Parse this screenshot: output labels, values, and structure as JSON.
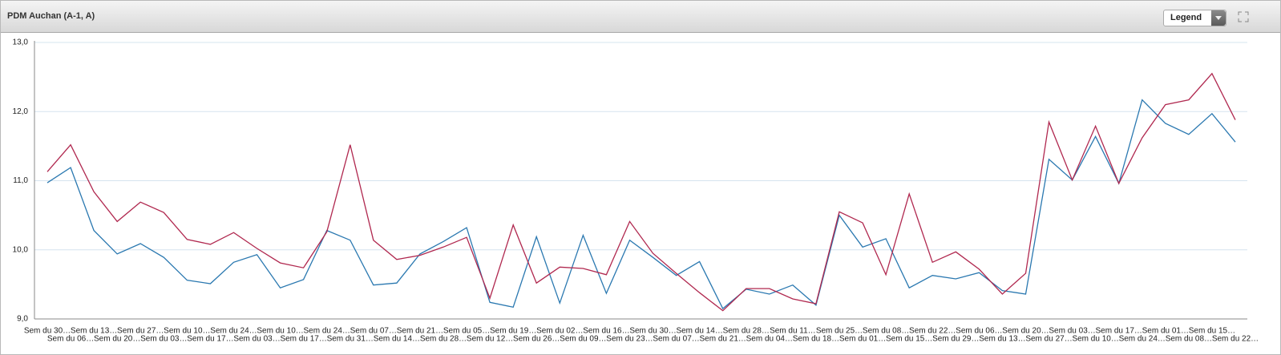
{
  "toolbar": {
    "legend_button": "Legend"
  },
  "chart_data": {
    "type": "line",
    "title": "PDM Auchan (A-1, A)",
    "categories": [
      "Sem du 30…",
      "Sem du 06…",
      "Sem du 13…",
      "Sem du 20…",
      "Sem du 27…",
      "Sem du 03…",
      "Sem du 10…",
      "Sem du 17…",
      "Sem du 24…",
      "Sem du 03…",
      "Sem du 10…",
      "Sem du 17…",
      "Sem du 24…",
      "Sem du 31…",
      "Sem du 07…",
      "Sem du 14…",
      "Sem du 21…",
      "Sem du 28…",
      "Sem du 05…",
      "Sem du 12…",
      "Sem du 19…",
      "Sem du 26…",
      "Sem du 02…",
      "Sem du 09…",
      "Sem du 16…",
      "Sem du 23…",
      "Sem du 30…",
      "Sem du 07…",
      "Sem du 14…",
      "Sem du 21…",
      "Sem du 28…",
      "Sem du 04…",
      "Sem du 11…",
      "Sem du 18…",
      "Sem du 25…",
      "Sem du 01…",
      "Sem du 08…",
      "Sem du 15…",
      "Sem du 22…",
      "Sem du 29…",
      "Sem du 06…",
      "Sem du 13…",
      "Sem du 20…",
      "Sem du 27…",
      "Sem du 03…",
      "Sem du 10…",
      "Sem du 17…",
      "Sem du 24…",
      "Sem du 01…",
      "Sem du 08…",
      "Sem du 15…",
      "Sem du 22…"
    ],
    "series": [
      {
        "color": "#2a78b0",
        "values": [
          10.97,
          11.19,
          10.28,
          9.94,
          10.09,
          9.89,
          9.56,
          9.51,
          9.82,
          9.93,
          9.45,
          9.57,
          10.28,
          10.14,
          9.49,
          9.52,
          9.94,
          10.12,
          10.32,
          9.24,
          9.17,
          10.19,
          9.23,
          10.21,
          9.37,
          10.14,
          9.89,
          9.63,
          9.83,
          9.15,
          9.43,
          9.36,
          9.49,
          9.2,
          10.5,
          10.04,
          10.16,
          9.45,
          9.63,
          9.58,
          9.67,
          9.41,
          9.36,
          11.31,
          11.01,
          11.64,
          10.96,
          12.17,
          11.83,
          11.67,
          11.97,
          11.56
        ]
      },
      {
        "color": "#b0284f",
        "values": [
          11.13,
          11.52,
          10.84,
          10.41,
          10.69,
          10.54,
          10.15,
          10.08,
          10.25,
          10.02,
          9.81,
          9.74,
          10.26,
          11.52,
          10.14,
          9.86,
          9.92,
          10.04,
          10.18,
          9.3,
          10.36,
          9.52,
          9.75,
          9.73,
          9.64,
          10.41,
          9.95,
          9.66,
          9.38,
          9.12,
          9.44,
          9.44,
          9.29,
          9.22,
          10.55,
          10.39,
          9.64,
          10.81,
          9.82,
          9.97,
          9.72,
          9.36,
          9.66,
          11.85,
          11.01,
          11.79,
          10.96,
          11.62,
          12.1,
          12.17,
          12.55,
          11.88
        ]
      }
    ],
    "ylim": [
      9,
      13
    ],
    "yticks": [
      {
        "value": 9,
        "label": "9,0"
      },
      {
        "value": 10,
        "label": "10,0"
      },
      {
        "value": 11,
        "label": "11,0"
      },
      {
        "value": 12,
        "label": "12,0"
      },
      {
        "value": 13,
        "label": "13,0"
      }
    ],
    "grid": true
  }
}
